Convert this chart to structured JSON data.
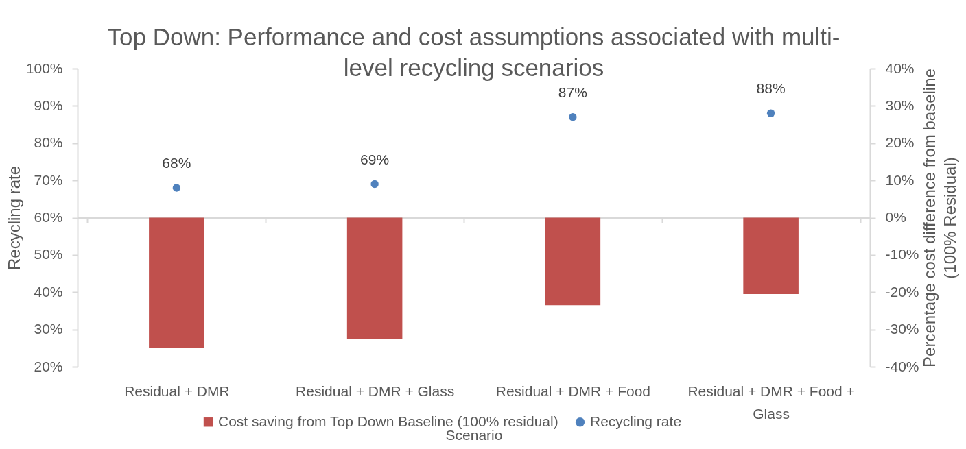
{
  "chart_data": {
    "type": "bar",
    "title": "Top Down: Performance and cost assumptions associated with multi-level recycling scenarios",
    "xlabel": "Scenario",
    "ylabel": "Recycling rate",
    "y2label": "Percentage cost difference from baseline (100% Residual)",
    "categories": [
      "Residual + DMR",
      "Residual + DMR + Glass",
      "Residual + DMR + Food",
      "Residual + DMR + Food + Glass"
    ],
    "series": [
      {
        "name": "Cost saving from Top Down Baseline (100% residual)",
        "axis": "y2",
        "color": "#c0504d",
        "values": [
          -35,
          -32.5,
          -23.5,
          -20.5
        ]
      },
      {
        "name": "Recycling rate",
        "type": "scatter",
        "color": "#4f81bd",
        "values": [
          68,
          69,
          87,
          88
        ],
        "value_labels": [
          "68%",
          "69%",
          "87%",
          "88%"
        ]
      }
    ],
    "ylim": [
      20,
      100
    ],
    "yticks": [
      {
        "value": 20,
        "label": "20%"
      },
      {
        "value": 30,
        "label": "30%"
      },
      {
        "value": 40,
        "label": "40%"
      },
      {
        "value": 50,
        "label": "50%"
      },
      {
        "value": 60,
        "label": "60%"
      },
      {
        "value": 70,
        "label": "70%"
      },
      {
        "value": 80,
        "label": "80%"
      },
      {
        "value": 90,
        "label": "90%"
      },
      {
        "value": 100,
        "label": "100%"
      }
    ],
    "y2lim": [
      -40,
      40
    ],
    "y2ticks": [
      {
        "value": -40,
        "label": "-40%"
      },
      {
        "value": -30,
        "label": "-30%"
      },
      {
        "value": -20,
        "label": "-20%"
      },
      {
        "value": -10,
        "label": "-10%"
      },
      {
        "value": 0,
        "label": "0%"
      },
      {
        "value": 10,
        "label": "10%"
      },
      {
        "value": 20,
        "label": "20%"
      },
      {
        "value": 30,
        "label": "30%"
      },
      {
        "value": 40,
        "label": "40%"
      }
    ],
    "legend": "bottom",
    "marker": "circle"
  }
}
